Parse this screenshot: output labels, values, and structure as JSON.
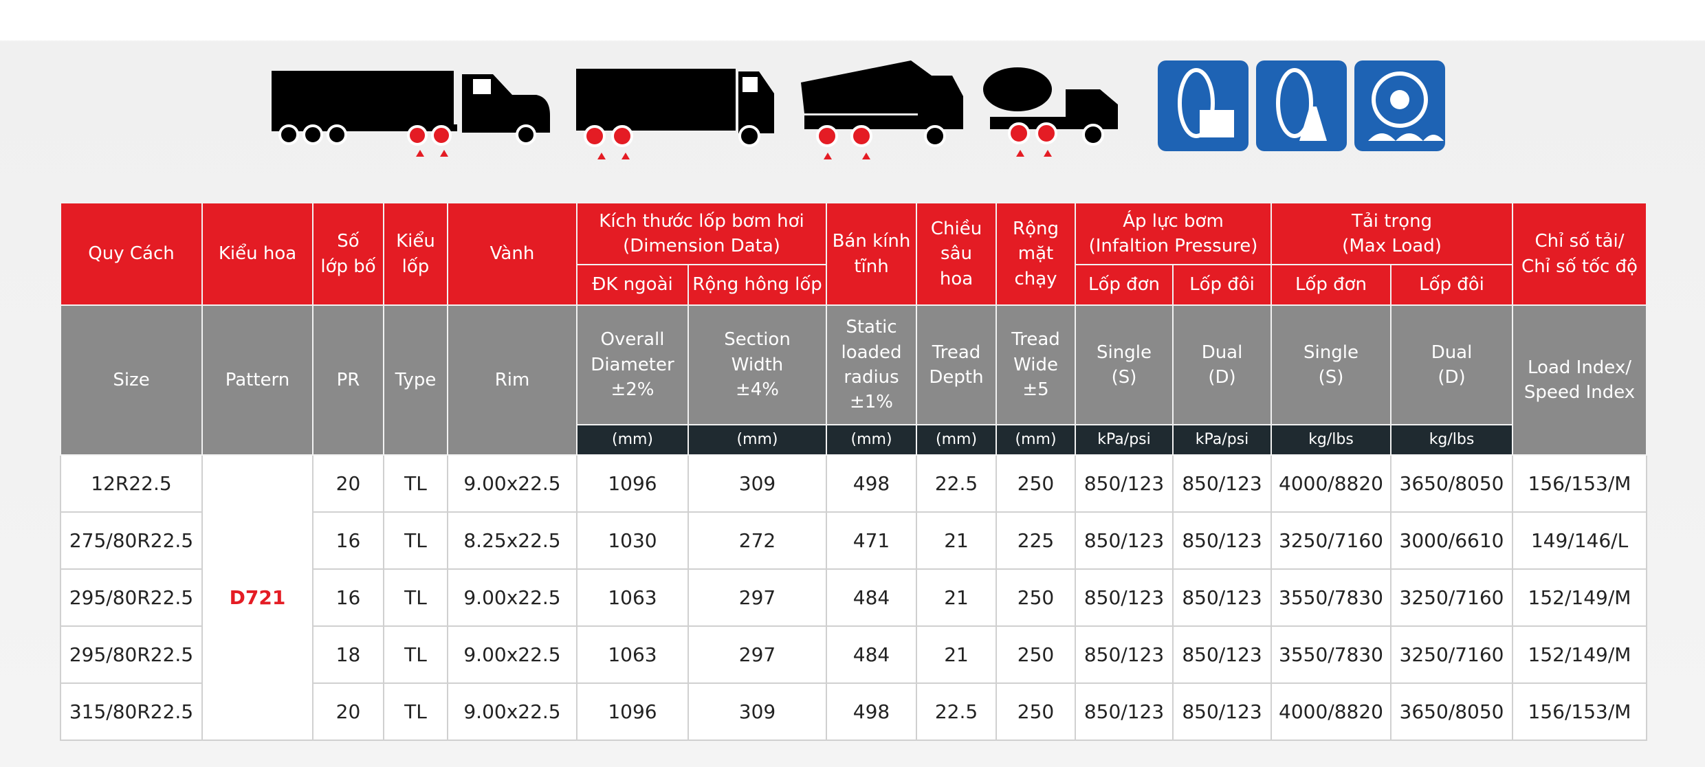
{
  "table": {
    "red": [
      "Quy Cách",
      "Kiểu hoa",
      "Số\nlớp bố",
      "Kiểu\nlốp",
      "Vành",
      "Kích thước lốp bơm hơi\n(Dimension Data)",
      "Bán kính\ntĩnh",
      "Chiều\nsâu\nhoa",
      "Rộng\nmặt\nchạy",
      "Áp lực bơm\n(Infaltion Pressure)",
      "Tải trọng\n(Max Load)",
      "Chỉ số tải/\nChỉ số tốc độ"
    ],
    "red_sub": [
      "ĐK ngoài",
      "Rộng hông lốp",
      "Lốp đơn",
      "Lốp đôi",
      "Lốp đơn",
      "Lốp đôi"
    ],
    "gray": [
      "Size",
      "Pattern",
      "PR",
      "Type",
      "Rim",
      "Overall\nDiameter\n±2%",
      "Section\nWidth\n±4%",
      "Static\nloaded\nradius\n±1%",
      "Tread\nDepth",
      "Tread\nWide\n±5",
      "Single\n(S)",
      "Dual\n(D)",
      "Single\n(S)",
      "Dual\n(D)",
      "Load Index/\nSpeed Index"
    ],
    "units": [
      "(mm)",
      "(mm)",
      "(mm)",
      "(mm)",
      "(mm)",
      "kPa/psi",
      "kPa/psi",
      "kg/lbs",
      "kg/lbs"
    ],
    "pattern": "D721",
    "rows": [
      [
        "12R22.5",
        20,
        "TL",
        "9.00x22.5",
        1096,
        309,
        498,
        22.5,
        250,
        "850/123",
        "850/123",
        "4000/8820",
        "3650/8050",
        "156/153/M"
      ],
      [
        "275/80R22.5",
        16,
        "TL",
        "8.25x22.5",
        1030,
        272,
        471,
        21,
        225,
        "850/123",
        "850/123",
        "3250/7160",
        "3000/6610",
        "149/146/L"
      ],
      [
        "295/80R22.5",
        16,
        "TL",
        "9.00x22.5",
        1063,
        297,
        484,
        21,
        250,
        "850/123",
        "850/123",
        "3550/7830",
        "3250/7160",
        "152/149/M"
      ],
      [
        "295/80R22.5",
        18,
        "TL",
        "9.00x22.5",
        1063,
        297,
        484,
        21,
        250,
        "850/123",
        "850/123",
        "3550/7830",
        "3250/7160",
        "152/149/M"
      ],
      [
        "315/80R22.5",
        20,
        "TL",
        "9.00x22.5",
        1096,
        309,
        498,
        22.5,
        250,
        "850/123",
        "850/123",
        "4000/8820",
        "3650/8050",
        "156/153/M"
      ]
    ]
  }
}
